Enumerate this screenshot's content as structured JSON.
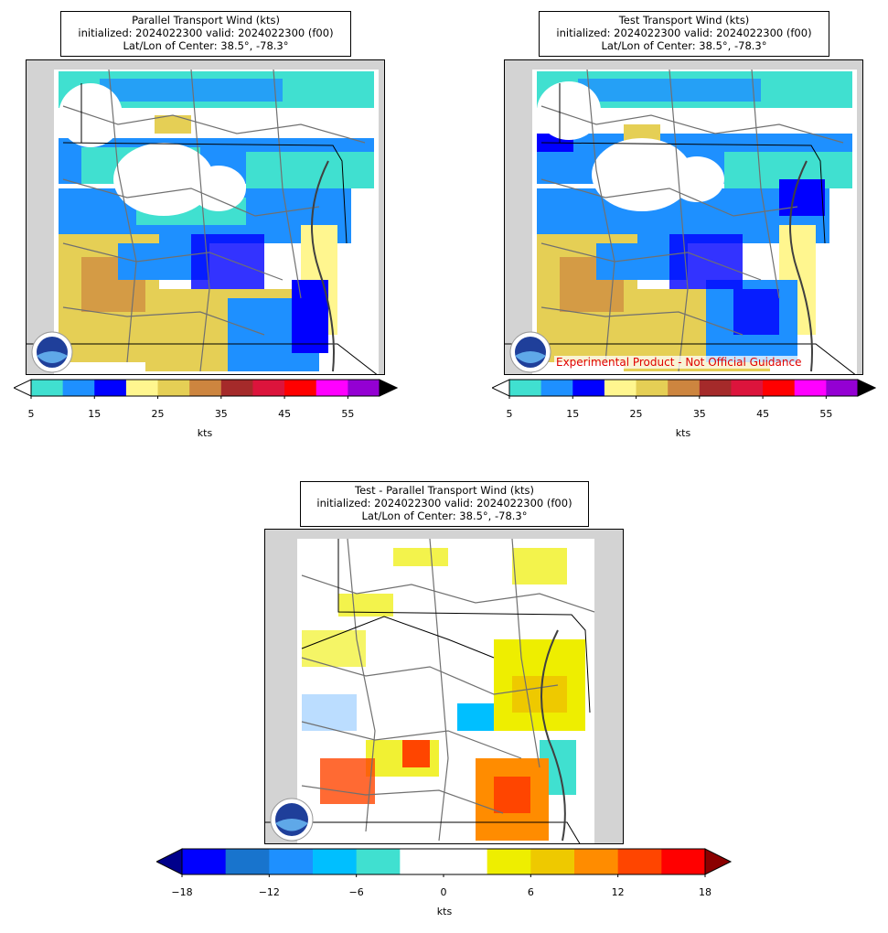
{
  "panels": [
    {
      "title_lines": [
        "Parallel Transport Wind (kts)",
        "initialized: 2024022300 valid: 2024022300 (f00)",
        "Lat/Lon of Center: 38.5°, -78.3°"
      ],
      "logo": "noaa-logo-icon",
      "colorbar": {
        "colors": [
          "#40e0d0",
          "#1e90ff",
          "#0000ff",
          "#fff68f",
          "#e5cf55",
          "#cd853f",
          "#a52a2a",
          "#dc143c",
          "#ff0000",
          "#ff00ff",
          "#9400d3"
        ],
        "ticks": [
          "5",
          "15",
          "25",
          "35",
          "45",
          "55"
        ],
        "label": "kts",
        "extend_under": "#ffffff",
        "extend_over": "#000000"
      }
    },
    {
      "title_lines": [
        "Test Transport Wind (kts)",
        "initialized: 2024022300 valid: 2024022300 (f00)",
        "Lat/Lon of Center: 38.5°, -78.3°"
      ],
      "logo": "noaa-logo-icon",
      "watermark": "Experimental Product - Not Official Guidance",
      "colorbar": {
        "colors": [
          "#40e0d0",
          "#1e90ff",
          "#0000ff",
          "#fff68f",
          "#e5cf55",
          "#cd853f",
          "#a52a2a",
          "#dc143c",
          "#ff0000",
          "#ff00ff",
          "#9400d3"
        ],
        "ticks": [
          "5",
          "15",
          "25",
          "35",
          "45",
          "55"
        ],
        "label": "kts",
        "extend_under": "#ffffff",
        "extend_over": "#000000"
      }
    },
    {
      "title_lines": [
        "Test - Parallel Transport Wind (kts)",
        "initialized: 2024022300 valid: 2024022300 (f00)",
        "Lat/Lon of Center: 38.5°, -78.3°"
      ],
      "logo": "noaa-logo-icon",
      "colorbar": {
        "colors": [
          "#0000ff",
          "#1874cd",
          "#1e90ff",
          "#00bfff",
          "#40e0d0",
          "#ffffff",
          "#ffffff",
          "#eeee00",
          "#eec900",
          "#ff8c00",
          "#ff4500",
          "#ff0000"
        ],
        "ticks": [
          "−18",
          "−12",
          "−6",
          "0",
          "6",
          "12",
          "18"
        ],
        "label": "kts",
        "extend_under": "#00008b",
        "extend_over": "#8b0000"
      }
    }
  ]
}
